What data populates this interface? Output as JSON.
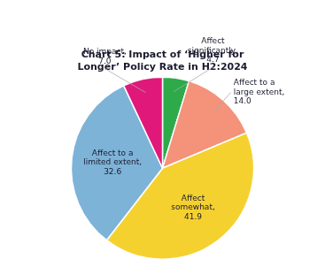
{
  "chart_data": {
    "type": "pie",
    "title": "Chart 5: Impact of ‘Higher for Longer’ Policy Rate in H2:2024",
    "categories": [
      "Affect\nsignificantly,\n4.7",
      "Affect to a\nlarge extent,\n14.0",
      "Affect\nsomewhat,\n41.9",
      "Affect to a\nlimited extent,\n32.6",
      "No impact,\n7.0"
    ],
    "values": [
      4.7,
      14.0,
      41.9,
      32.6,
      7.0
    ],
    "colors": [
      "#2EAA4A",
      "#F4927A",
      "#F5D130",
      "#7EB3D8",
      "#E0187A"
    ]
  }
}
